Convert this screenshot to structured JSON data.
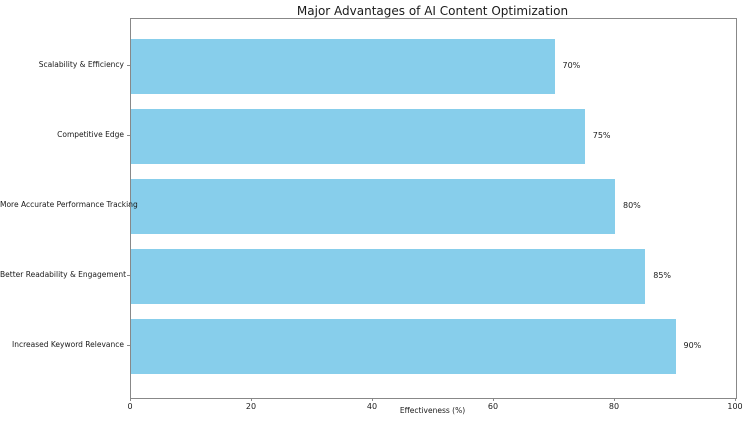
{
  "chart_data": {
    "type": "bar",
    "orientation": "horizontal",
    "title": "Major Advantages of AI Content Optimization",
    "categories": [
      "Scalability & Efficiency",
      "Competitive Edge",
      "More Accurate Performance Tracking",
      "Better Readability & Engagement",
      "Increased Keyword Relevance"
    ],
    "values": [
      70,
      75,
      80,
      85,
      90
    ],
    "value_labels": [
      "70%",
      "75%",
      "80%",
      "85%",
      "90%"
    ],
    "xlabel": "Effectiveness (%)",
    "ylabel": "",
    "xlim": [
      0,
      100
    ],
    "xticks": [
      0,
      20,
      40,
      60,
      80,
      100
    ],
    "xtick_labels": [
      "0",
      "20",
      "40",
      "60",
      "80",
      "100"
    ],
    "grid": false,
    "legend": null,
    "bar_color": "#87CEEB",
    "background_color": "#FFFFFF",
    "spine_color": "#888888",
    "text_color": "#1A1A1A"
  }
}
